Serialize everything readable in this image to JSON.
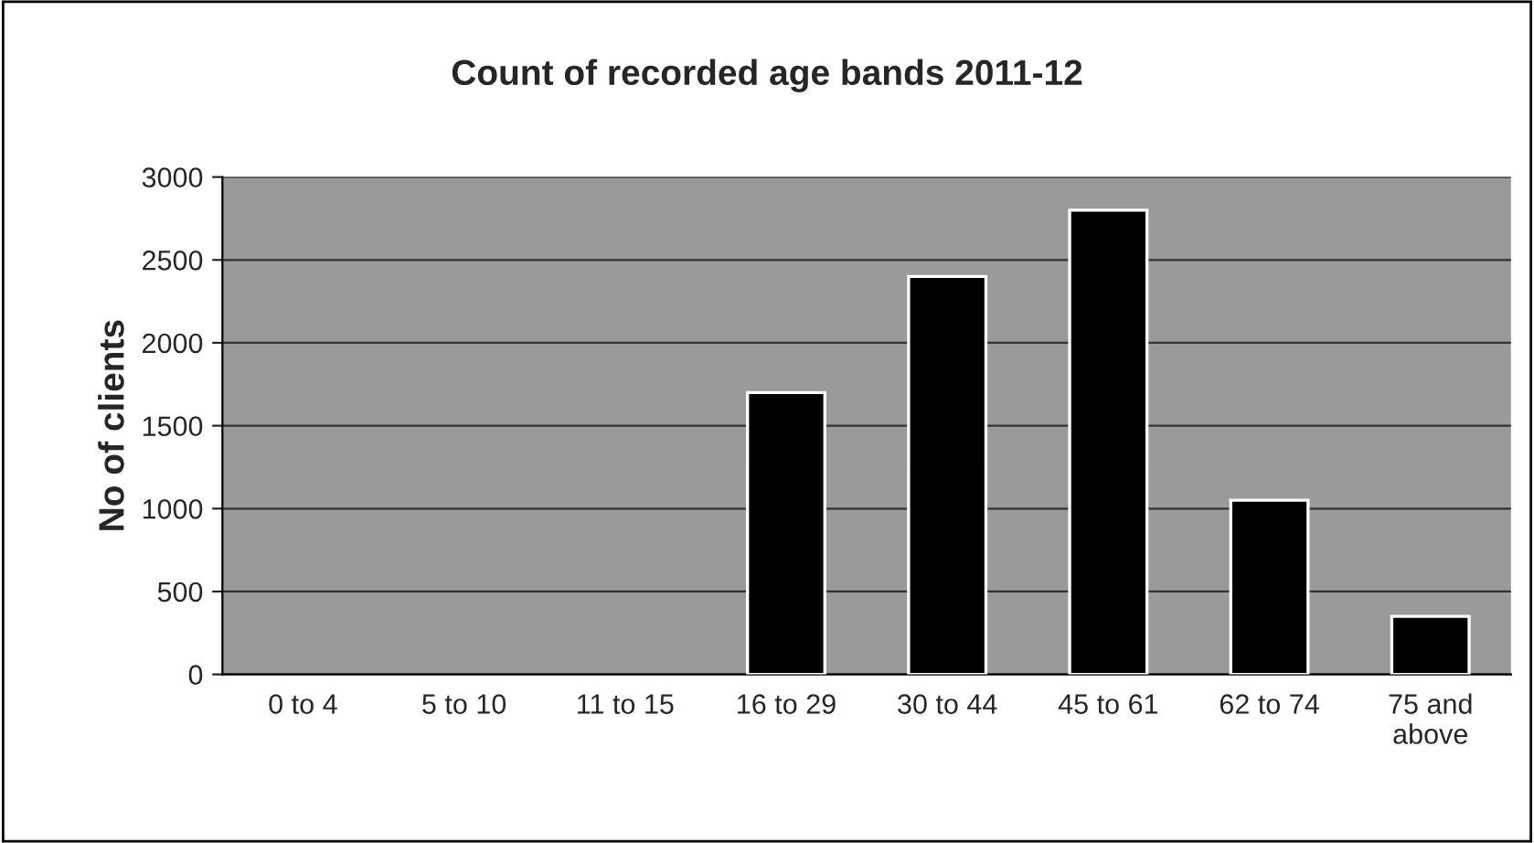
{
  "chart_data": {
    "type": "bar",
    "title": "Count of recorded age bands 2011-12",
    "ylabel": "No of clients",
    "categories": [
      "0 to 4",
      "5 to 10",
      "11 to 15",
      "16 to 29",
      "30 to 44",
      "45 to 61",
      "62 to 74",
      "75 and\nabove"
    ],
    "values": [
      0,
      0,
      0,
      1700,
      2400,
      2800,
      1050,
      350
    ],
    "color": "#000000",
    "ylim": [
      0,
      3000
    ],
    "yticks": [
      0,
      500,
      1000,
      1500,
      2000,
      2500,
      3000
    ],
    "grid": "y",
    "legend": false
  }
}
